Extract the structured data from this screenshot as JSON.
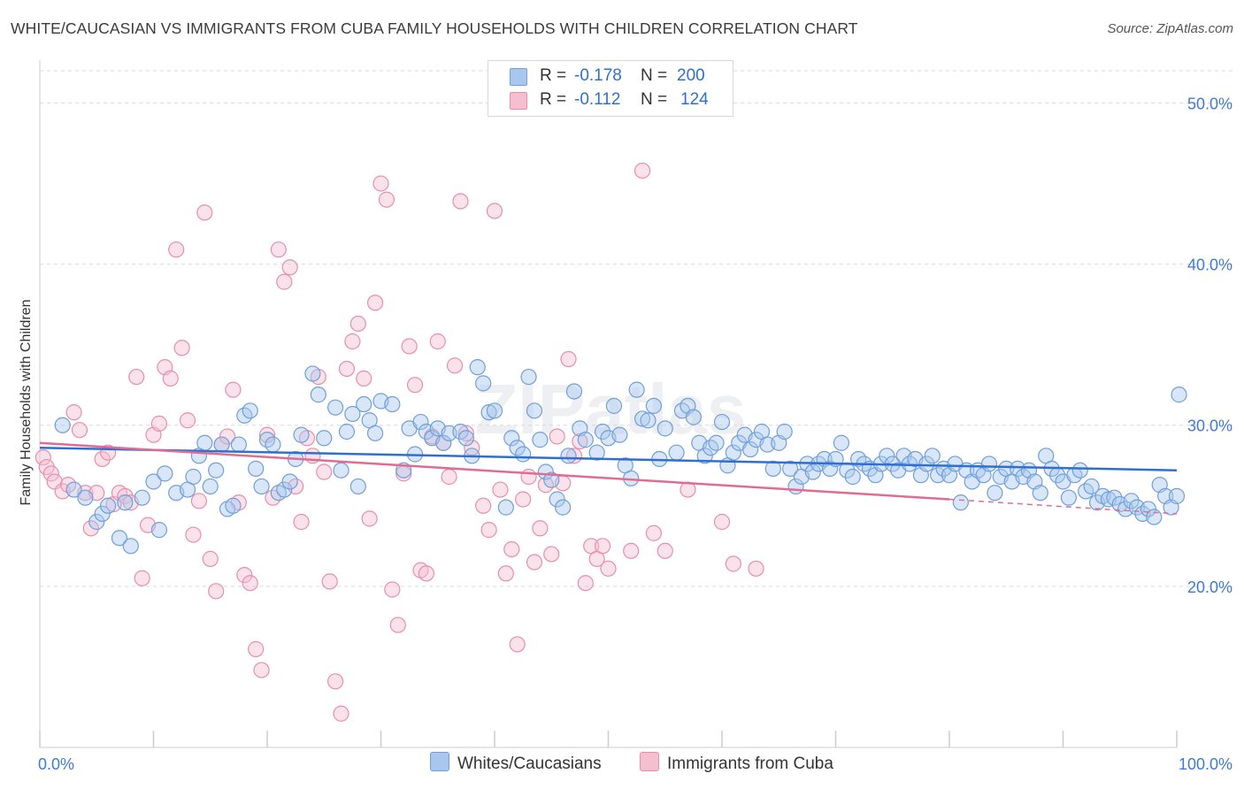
{
  "title": "WHITE/CAUCASIAN VS IMMIGRANTS FROM CUBA FAMILY HOUSEHOLDS WITH CHILDREN CORRELATION CHART",
  "source": "Source: ZipAtlas.com",
  "watermark": "ZIPatlas",
  "legend": {
    "series1": {
      "r_label": "R =",
      "r_value": "-0.178",
      "n_label": "N =",
      "n_value": "200"
    },
    "series2": {
      "r_label": "R =",
      "r_value": "-0.112",
      "n_label": "N =",
      "n_value": "124"
    }
  },
  "bottom_legend": [
    "Whites/Caucasians",
    "Immigrants from Cuba"
  ],
  "colors": {
    "blue_fill": "#a9c7ee",
    "blue_stroke": "#6f9fdc",
    "blue_line": "#2e6fd1",
    "pink_fill": "#f5bfd0",
    "pink_stroke": "#e88eab",
    "pink_line": "#e06b93",
    "axis_text": "#3e7bd6",
    "grid": "#d9d9d9"
  },
  "chart_data": {
    "type": "scatter",
    "title": "WHITE/CAUCASIAN VS IMMIGRANTS FROM CUBA FAMILY HOUSEHOLDS WITH CHILDREN CORRELATION CHART",
    "xlabel": "",
    "ylabel": "Family Households with Children",
    "xlim": [
      0,
      100
    ],
    "ylim": [
      10,
      52
    ],
    "y_ticks": [
      20,
      30,
      40,
      50
    ],
    "y_tick_labels": [
      "20.0%",
      "30.0%",
      "40.0%",
      "50.0%"
    ],
    "x_tick_labels": [
      "0.0%",
      "100.0%"
    ],
    "series": [
      {
        "name": "Whites/Caucasians",
        "color": "blue",
        "trend": {
          "x": [
            0,
            100
          ],
          "y": [
            28.6,
            27.2
          ]
        },
        "trend_dashed": null,
        "points": [
          [
            2,
            30
          ],
          [
            3,
            26
          ],
          [
            4,
            25.5
          ],
          [
            5,
            24
          ],
          [
            5.5,
            24.5
          ],
          [
            6,
            25
          ],
          [
            7,
            23
          ],
          [
            7.5,
            25.2
          ],
          [
            8,
            22.5
          ],
          [
            9,
            25.5
          ],
          [
            10,
            26.5
          ],
          [
            10.5,
            23.5
          ],
          [
            11,
            27
          ],
          [
            12,
            25.8
          ],
          [
            13,
            26
          ],
          [
            13.5,
            26.8
          ],
          [
            14,
            28.1
          ],
          [
            14.5,
            28.9
          ],
          [
            15,
            26.2
          ],
          [
            15.5,
            27.2
          ],
          [
            16,
            28.8
          ],
          [
            16.5,
            24.8
          ],
          [
            17,
            25
          ],
          [
            17.5,
            28.8
          ],
          [
            18,
            30.6
          ],
          [
            18.5,
            30.9
          ],
          [
            19,
            27.3
          ],
          [
            19.5,
            26.2
          ],
          [
            20,
            29.1
          ],
          [
            20.5,
            28.8
          ],
          [
            21,
            25.8
          ],
          [
            21.5,
            26
          ],
          [
            22,
            26.5
          ],
          [
            22.5,
            27.9
          ],
          [
            23,
            29.4
          ],
          [
            24,
            33.2
          ],
          [
            24.5,
            31.9
          ],
          [
            25,
            29.2
          ],
          [
            26,
            31.1
          ],
          [
            26.5,
            27.2
          ],
          [
            27,
            29.6
          ],
          [
            27.5,
            30.7
          ],
          [
            28,
            26.2
          ],
          [
            28.5,
            31.3
          ],
          [
            29,
            30.3
          ],
          [
            29.5,
            29.5
          ],
          [
            30,
            31.5
          ],
          [
            31,
            31.3
          ],
          [
            32,
            27.2
          ],
          [
            32.5,
            29.8
          ],
          [
            33,
            28.2
          ],
          [
            33.5,
            30.2
          ],
          [
            34,
            29.6
          ],
          [
            34.5,
            29.2
          ],
          [
            35,
            29.8
          ],
          [
            35.5,
            28.9
          ],
          [
            36,
            29.5
          ],
          [
            37,
            29.6
          ],
          [
            37.5,
            29.2
          ],
          [
            38,
            28.1
          ],
          [
            38.5,
            33.6
          ],
          [
            39,
            32.6
          ],
          [
            39.5,
            30.8
          ],
          [
            40,
            30.9
          ],
          [
            41,
            24.9
          ],
          [
            41.5,
            29.2
          ],
          [
            42,
            28.6
          ],
          [
            42.5,
            28.2
          ],
          [
            43,
            33
          ],
          [
            43.5,
            30.9
          ],
          [
            44,
            29.1
          ],
          [
            44.5,
            27.1
          ],
          [
            45,
            26.6
          ],
          [
            45.5,
            25.4
          ],
          [
            46,
            24.9
          ],
          [
            46.5,
            28.1
          ],
          [
            47,
            32.1
          ],
          [
            47.5,
            29.8
          ],
          [
            48,
            29.1
          ],
          [
            49,
            28.3
          ],
          [
            49.5,
            29.6
          ],
          [
            50,
            29.2
          ],
          [
            50.5,
            31.2
          ],
          [
            51,
            29.4
          ],
          [
            51.5,
            27.5
          ],
          [
            52,
            26.7
          ],
          [
            52.5,
            32.2
          ],
          [
            53,
            30.4
          ],
          [
            53.5,
            30.3
          ],
          [
            54,
            31.2
          ],
          [
            54.5,
            27.9
          ],
          [
            55,
            29.8
          ],
          [
            56,
            28.3
          ],
          [
            56.5,
            30.9
          ],
          [
            57,
            31.2
          ],
          [
            57.5,
            30.5
          ],
          [
            58,
            28.9
          ],
          [
            58.5,
            28.1
          ],
          [
            59,
            28.6
          ],
          [
            59.5,
            28.9
          ],
          [
            60,
            30.2
          ],
          [
            60.5,
            27.5
          ],
          [
            61,
            28.3
          ],
          [
            61.5,
            28.9
          ],
          [
            62,
            29.4
          ],
          [
            62.5,
            28.5
          ],
          [
            63,
            29.1
          ],
          [
            63.5,
            29.6
          ],
          [
            64,
            28.8
          ],
          [
            64.5,
            27.3
          ],
          [
            65,
            28.9
          ],
          [
            65.5,
            29.6
          ],
          [
            66,
            27.3
          ],
          [
            66.5,
            26.2
          ],
          [
            67,
            26.8
          ],
          [
            67.5,
            27.6
          ],
          [
            68,
            27.1
          ],
          [
            68.5,
            27.6
          ],
          [
            69,
            27.9
          ],
          [
            69.5,
            27.3
          ],
          [
            70,
            27.9
          ],
          [
            70.5,
            28.9
          ],
          [
            71,
            27.2
          ],
          [
            71.5,
            26.8
          ],
          [
            72,
            27.9
          ],
          [
            72.5,
            27.6
          ],
          [
            73,
            27.3
          ],
          [
            73.5,
            26.9
          ],
          [
            74,
            27.6
          ],
          [
            74.5,
            28.1
          ],
          [
            75,
            27.6
          ],
          [
            75.5,
            27.2
          ],
          [
            76,
            28.1
          ],
          [
            76.5,
            27.6
          ],
          [
            77,
            27.9
          ],
          [
            77.5,
            26.9
          ],
          [
            78,
            27.6
          ],
          [
            78.5,
            28.1
          ],
          [
            79,
            26.9
          ],
          [
            79.5,
            27.3
          ],
          [
            80,
            26.9
          ],
          [
            80.5,
            27.6
          ],
          [
            81,
            25.2
          ],
          [
            81.5,
            27.2
          ],
          [
            82,
            26.5
          ],
          [
            82.5,
            27.2
          ],
          [
            83,
            26.9
          ],
          [
            83.5,
            27.6
          ],
          [
            84,
            25.8
          ],
          [
            84.5,
            26.8
          ],
          [
            85,
            27.3
          ],
          [
            85.5,
            26.5
          ],
          [
            86,
            27.3
          ],
          [
            86.5,
            26.8
          ],
          [
            87,
            27.2
          ],
          [
            87.5,
            26.5
          ],
          [
            88,
            25.8
          ],
          [
            88.5,
            28.1
          ],
          [
            89,
            27.3
          ],
          [
            89.5,
            26.9
          ],
          [
            90,
            26.5
          ],
          [
            90.5,
            25.5
          ],
          [
            91,
            26.9
          ],
          [
            91.5,
            27.2
          ],
          [
            92,
            25.9
          ],
          [
            92.5,
            26.2
          ],
          [
            93,
            25.2
          ],
          [
            93.5,
            25.6
          ],
          [
            94,
            25.4
          ],
          [
            94.5,
            25.5
          ],
          [
            95,
            25.1
          ],
          [
            95.5,
            24.8
          ],
          [
            96,
            25.3
          ],
          [
            96.5,
            24.9
          ],
          [
            97,
            24.5
          ],
          [
            97.5,
            24.8
          ],
          [
            98,
            24.3
          ],
          [
            98.5,
            26.3
          ],
          [
            99,
            25.6
          ],
          [
            99.5,
            24.9
          ],
          [
            100,
            25.6
          ],
          [
            100.2,
            31.9
          ]
        ]
      },
      {
        "name": "Immigrants from Cuba",
        "color": "pink",
        "trend": {
          "x": [
            0,
            80
          ],
          "y": [
            28.9,
            25.4
          ]
        },
        "trend_dashed": {
          "x": [
            80,
            100
          ],
          "y": [
            25.4,
            24.5
          ]
        },
        "points": [
          [
            0.3,
            28
          ],
          [
            0.6,
            27.4
          ],
          [
            1,
            27
          ],
          [
            1.3,
            26.5
          ],
          [
            2,
            25.9
          ],
          [
            2.5,
            26.3
          ],
          [
            3,
            30.8
          ],
          [
            3.5,
            29.7
          ],
          [
            4,
            25.8
          ],
          [
            4.5,
            23.6
          ],
          [
            5,
            25.8
          ],
          [
            5.5,
            27.9
          ],
          [
            6,
            28.3
          ],
          [
            6.5,
            25.1
          ],
          [
            7,
            25.8
          ],
          [
            7.5,
            25.6
          ],
          [
            8,
            25.2
          ],
          [
            8.5,
            33
          ],
          [
            9,
            20.5
          ],
          [
            9.5,
            23.8
          ],
          [
            10,
            29.4
          ],
          [
            10.5,
            30.1
          ],
          [
            11,
            33.6
          ],
          [
            11.5,
            32.9
          ],
          [
            12,
            40.9
          ],
          [
            12.5,
            34.8
          ],
          [
            13,
            30.3
          ],
          [
            13.5,
            23.2
          ],
          [
            14,
            25.3
          ],
          [
            14.5,
            43.2
          ],
          [
            15,
            21.7
          ],
          [
            15.5,
            19.7
          ],
          [
            16,
            28.8
          ],
          [
            16.5,
            29.3
          ],
          [
            17,
            32.2
          ],
          [
            17.5,
            25.2
          ],
          [
            18,
            20.7
          ],
          [
            18.5,
            20.2
          ],
          [
            19,
            16.1
          ],
          [
            19.5,
            14.8
          ],
          [
            20,
            29.4
          ],
          [
            20.5,
            25.5
          ],
          [
            21,
            40.9
          ],
          [
            21.5,
            38.9
          ],
          [
            22,
            39.8
          ],
          [
            22.5,
            26.2
          ],
          [
            23,
            24
          ],
          [
            23.5,
            29.2
          ],
          [
            24,
            28.1
          ],
          [
            24.5,
            33
          ],
          [
            25,
            27.1
          ],
          [
            25.5,
            20.3
          ],
          [
            26,
            14.1
          ],
          [
            26.5,
            12.1
          ],
          [
            27,
            33.5
          ],
          [
            27.5,
            35.2
          ],
          [
            28,
            36.3
          ],
          [
            28.5,
            32.9
          ],
          [
            29,
            24.2
          ],
          [
            29.5,
            37.6
          ],
          [
            30,
            45
          ],
          [
            30.5,
            44
          ],
          [
            31,
            19.8
          ],
          [
            31.5,
            17.6
          ],
          [
            32,
            27
          ],
          [
            32.5,
            34.9
          ],
          [
            33,
            32.5
          ],
          [
            33.5,
            21
          ],
          [
            34,
            20.8
          ],
          [
            34.5,
            29.3
          ],
          [
            35,
            35.2
          ],
          [
            35.5,
            28.9
          ],
          [
            36,
            26.8
          ],
          [
            36.5,
            33.7
          ],
          [
            37,
            43.9
          ],
          [
            37.5,
            29.5
          ],
          [
            38,
            28.6
          ],
          [
            39,
            25
          ],
          [
            39.5,
            23.5
          ],
          [
            40,
            43.3
          ],
          [
            40.5,
            26
          ],
          [
            41,
            20.8
          ],
          [
            41.5,
            22.3
          ],
          [
            42,
            16.4
          ],
          [
            42.5,
            25.4
          ],
          [
            43,
            26.8
          ],
          [
            43.5,
            21.5
          ],
          [
            44,
            23.6
          ],
          [
            44.5,
            26.3
          ],
          [
            45,
            22
          ],
          [
            45.5,
            29.3
          ],
          [
            46,
            26.4
          ],
          [
            46.5,
            34.1
          ],
          [
            47,
            28.1
          ],
          [
            47.5,
            29
          ],
          [
            48,
            20.2
          ],
          [
            48.5,
            22.5
          ],
          [
            49,
            21.7
          ],
          [
            49.5,
            22.5
          ],
          [
            50,
            21.1
          ],
          [
            52,
            22.2
          ],
          [
            53,
            45.8
          ],
          [
            54,
            23.3
          ],
          [
            55,
            22.2
          ],
          [
            57,
            26
          ],
          [
            60,
            24
          ],
          [
            61,
            21.4
          ],
          [
            63,
            21.1
          ]
        ]
      }
    ]
  }
}
